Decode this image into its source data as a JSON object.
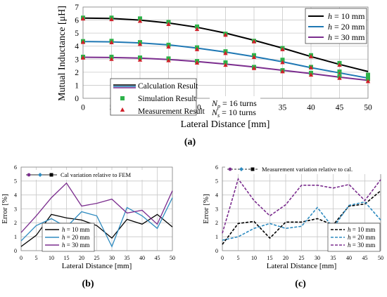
{
  "chart_data": [
    {
      "id": "a",
      "panel_label": "(a)",
      "type": "line",
      "xlabel": "Lateral Distance [mm]",
      "ylabel": "Mutual Inductance [μH]",
      "xlim": [
        0,
        50
      ],
      "ylim": [
        0,
        7
      ],
      "xticks": [
        "0",
        "5",
        "10",
        "15",
        "20",
        "25",
        "30",
        "35",
        "40",
        "45",
        "50"
      ],
      "yticks": [
        "0",
        "1",
        "2",
        "3",
        "4",
        "5",
        "6",
        "7"
      ],
      "grid": true,
      "x": [
        0,
        5,
        10,
        15,
        20,
        25,
        30,
        35,
        40,
        45,
        50
      ],
      "series_legend": {
        "placement": "top-right",
        "entries": [
          {
            "prefix": "h",
            "text": " = 10 mm",
            "color": "#000000"
          },
          {
            "prefix": "h",
            "text": " = 20 mm",
            "color": "#1f78b4"
          },
          {
            "prefix": "h",
            "text": " = 30 mm",
            "color": "#7b2d8e"
          }
        ]
      },
      "type_legend": {
        "placement": "bottom-left",
        "entries": [
          "Calculation Result",
          "Simulation Result",
          "Measurement Result"
        ]
      },
      "annotation": {
        "np_sub": "p",
        "ns_sub": "s",
        "np_text": " = 16 turns",
        "ns_text": " = 10 turns",
        "letter": "N"
      },
      "series": [
        {
          "color": "#000000",
          "calc": [
            6.15,
            6.12,
            6.0,
            5.78,
            5.45,
            5.0,
            4.45,
            3.85,
            3.2,
            2.6,
            2.05
          ],
          "sim": [
            6.18,
            6.18,
            6.12,
            5.85,
            5.5,
            4.95,
            4.4,
            3.85,
            3.3,
            2.7,
            1.8
          ],
          "meas": [
            6.1,
            6.05,
            5.92,
            5.68,
            5.3,
            4.85,
            4.35,
            3.75,
            3.2,
            2.55,
            1.6
          ]
        },
        {
          "color": "#1f78b4",
          "calc": [
            4.35,
            4.33,
            4.25,
            4.1,
            3.85,
            3.55,
            3.2,
            2.8,
            2.35,
            1.95,
            1.55
          ],
          "sim": [
            4.38,
            4.4,
            4.3,
            4.1,
            3.9,
            3.6,
            3.3,
            2.95,
            2.4,
            2.05,
            1.7
          ],
          "meas": [
            4.3,
            4.28,
            4.15,
            3.95,
            3.75,
            3.45,
            3.15,
            2.75,
            2.35,
            1.85,
            1.45
          ]
        },
        {
          "color": "#7b2d8e",
          "calc": [
            3.15,
            3.13,
            3.08,
            2.98,
            2.82,
            2.62,
            2.4,
            2.15,
            1.9,
            1.62,
            1.38
          ],
          "sim": [
            3.18,
            3.18,
            3.12,
            3.05,
            2.85,
            2.75,
            2.4,
            2.15,
            1.95,
            1.7,
            1.5
          ],
          "meas": [
            3.1,
            3.0,
            2.95,
            2.9,
            2.72,
            2.55,
            2.3,
            2.05,
            1.8,
            1.55,
            1.3
          ]
        }
      ]
    },
    {
      "id": "b",
      "panel_label": "(b)",
      "type": "line",
      "title": "Cal variation relative to FEM",
      "xlabel": "Lateral Distance [mm]",
      "ylabel": "Error [%]",
      "xlim": [
        0,
        50
      ],
      "ylim": [
        0,
        6
      ],
      "xticks": [
        "0",
        "5",
        "10",
        "15",
        "20",
        "25",
        "30",
        "35",
        "40",
        "45",
        "50"
      ],
      "yticks": [
        "0",
        "1",
        "2",
        "3",
        "4",
        "5",
        "6"
      ],
      "grid": true,
      "legend_placement": "bottom-left",
      "x": [
        0,
        5,
        10,
        15,
        20,
        25,
        30,
        35,
        40,
        45,
        50
      ],
      "series": [
        {
          "prefix": "h",
          "text": " = 10 mm",
          "color": "#000000",
          "values": [
            0.3,
            1.1,
            2.6,
            2.35,
            2.2,
            1.8,
            0.9,
            2.25,
            1.9,
            2.6,
            1.7
          ]
        },
        {
          "prefix": "h",
          "text": " = 20 mm",
          "color": "#2e8bc0",
          "values": [
            0.7,
            1.8,
            2.3,
            1.7,
            2.8,
            2.5,
            0.3,
            3.1,
            2.5,
            1.6,
            3.8
          ]
        },
        {
          "prefix": "h",
          "text": " = 30 mm",
          "color": "#7b2d8e",
          "values": [
            1.3,
            2.5,
            3.8,
            4.85,
            3.2,
            3.4,
            3.7,
            2.7,
            2.9,
            1.9,
            4.3
          ]
        }
      ]
    },
    {
      "id": "c",
      "panel_label": "(c)",
      "type": "line",
      "title": "Measurement variation relative to cal.",
      "xlabel": "Lateral Distance [mm]",
      "ylabel": "Error [%]",
      "xlim": [
        0,
        50
      ],
      "ylim": [
        0,
        6
      ],
      "xticks": [
        "0",
        "5",
        "10",
        "15",
        "20",
        "25",
        "30",
        "35",
        "40",
        "45",
        "50"
      ],
      "yticks": [
        "0",
        "1",
        "2",
        "3",
        "4",
        "5",
        "6"
      ],
      "grid": true,
      "legend_placement": "bottom-right",
      "dashed": true,
      "x": [
        0,
        5,
        10,
        15,
        20,
        25,
        30,
        35,
        40,
        45,
        50
      ],
      "series": [
        {
          "prefix": "h",
          "text": " = 10 mm",
          "color": "#000000",
          "values": [
            0.45,
            1.95,
            2.1,
            0.9,
            2.05,
            2.05,
            2.3,
            1.85,
            3.2,
            3.35,
            4.3
          ]
        },
        {
          "prefix": "h",
          "text": " = 20 mm",
          "color": "#2e8bc0",
          "values": [
            0.75,
            1.0,
            1.6,
            1.95,
            1.6,
            1.75,
            3.1,
            1.65,
            3.25,
            3.5,
            2.2
          ]
        },
        {
          "prefix": "h",
          "text": " = 30 mm",
          "color": "#7b2d8e",
          "values": [
            1.25,
            5.15,
            3.6,
            2.5,
            3.3,
            4.7,
            4.7,
            4.5,
            4.75,
            3.6,
            5.1
          ]
        }
      ]
    }
  ]
}
